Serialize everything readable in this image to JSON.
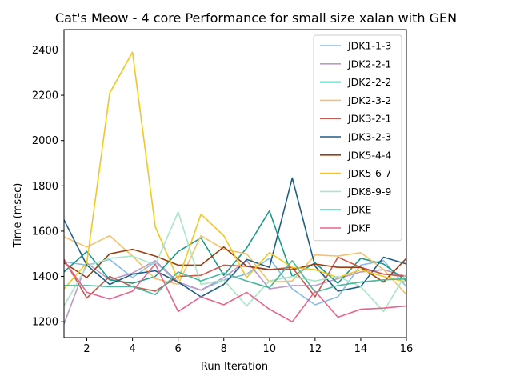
{
  "chart_data": {
    "type": "line",
    "title": "Cat's Meow - 4 core Performance for small size xalan with GEN",
    "xlabel": "Run Iteration",
    "ylabel": "Time (msec)",
    "xlim": [
      1,
      16
    ],
    "ylim": [
      1130,
      2490
    ],
    "xticks": [
      2,
      4,
      6,
      8,
      10,
      12,
      14,
      16
    ],
    "yticks": [
      1200,
      1400,
      1600,
      1800,
      2000,
      2200,
      2400
    ],
    "grid": false,
    "legend_position": "upper-right",
    "x": [
      1,
      2,
      3,
      4,
      5,
      6,
      7,
      8,
      9,
      10,
      11,
      12,
      13,
      14,
      15,
      16
    ],
    "series": [
      {
        "name": "JDK1-1-3",
        "color": "#88bde6",
        "values": [
          1465,
          1450,
          1475,
          1395,
          1465,
          1370,
          1340,
          1385,
          1410,
          1480,
          1345,
          1275,
          1310,
          1450,
          1470,
          1355
        ]
      },
      {
        "name": "JDK2-2-1",
        "color": "#bc99c7",
        "values": [
          1190,
          1460,
          1385,
          1415,
          1470,
          1375,
          1340,
          1395,
          1470,
          1345,
          1360,
          1360,
          1390,
          1420,
          1430,
          1400
        ]
      },
      {
        "name": "JDK2-2-2",
        "color": "#1c9a86",
        "values": [
          1420,
          1510,
          1385,
          1370,
          1400,
          1510,
          1570,
          1405,
          1525,
          1690,
          1400,
          1460,
          1370,
          1480,
          1455,
          1380
        ]
      },
      {
        "name": "JDK2-3-2",
        "color": "#f5c26b",
        "values": [
          1575,
          1530,
          1580,
          1490,
          1390,
          1365,
          1580,
          1520,
          1500,
          1375,
          1380,
          1495,
          1490,
          1505,
          1430,
          1320
        ]
      },
      {
        "name": "JDK3-2-1",
        "color": "#c7584a",
        "values": [
          1475,
          1305,
          1400,
          1355,
          1335,
          1400,
          1405,
          1450,
          1445,
          1430,
          1440,
          1310,
          1485,
          1440,
          1410,
          1400
        ]
      },
      {
        "name": "JDK3-2-3",
        "color": "#1f5f86",
        "values": [
          1650,
          1450,
          1365,
          1410,
          1425,
          1375,
          1310,
          1365,
          1475,
          1440,
          1835,
          1445,
          1335,
          1355,
          1485,
          1455
        ]
      },
      {
        "name": "JDK5-4-4",
        "color": "#9c3d0f",
        "values": [
          1460,
          1395,
          1500,
          1520,
          1490,
          1450,
          1450,
          1530,
          1445,
          1430,
          1430,
          1455,
          1440,
          1440,
          1375,
          1480
        ]
      },
      {
        "name": "JDK5-6-7",
        "color": "#f0c81e",
        "values": [
          1345,
          1460,
          2210,
          2390,
          1620,
          1385,
          1675,
          1580,
          1395,
          1505,
          1440,
          1430,
          1395,
          1430,
          1400,
          1375
        ]
      },
      {
        "name": "JDK8-9-9",
        "color": "#a8e6c5",
        "values": [
          1270,
          1445,
          1480,
          1490,
          1450,
          1685,
          1365,
          1385,
          1270,
          1380,
          1400,
          1380,
          1400,
          1355,
          1245,
          1415
        ]
      },
      {
        "name": "JDKE",
        "color": "#4bb79e",
        "values": [
          1360,
          1360,
          1355,
          1355,
          1320,
          1420,
          1380,
          1415,
          1380,
          1350,
          1470,
          1330,
          1360,
          1375,
          1385,
          1390
        ]
      },
      {
        "name": "JDKF",
        "color": "#e8648e",
        "values": [
          1470,
          1330,
          1300,
          1335,
          1455,
          1245,
          1310,
          1275,
          1330,
          1255,
          1200,
          1335,
          1220,
          1255,
          1260,
          1270
        ]
      }
    ]
  }
}
